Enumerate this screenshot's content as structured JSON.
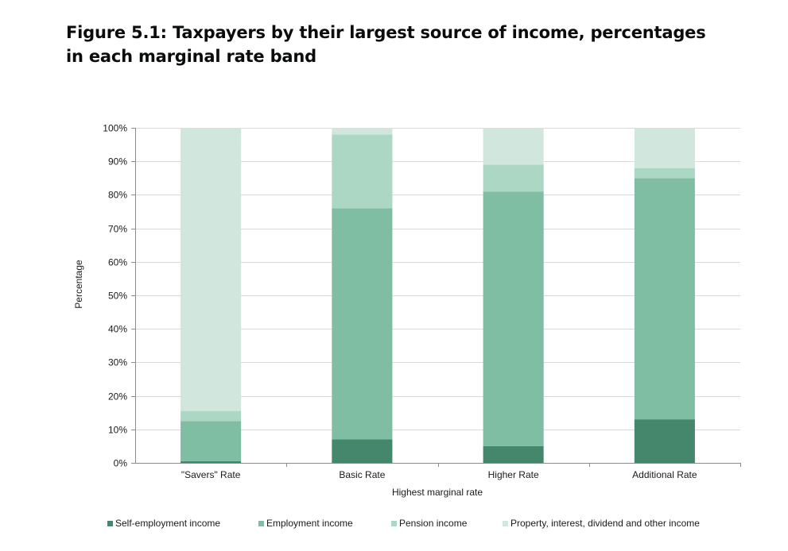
{
  "figure_title": "Figure 5.1: Taxpayers by their largest source of income, percentages in each marginal rate band",
  "chart_data": {
    "type": "bar",
    "stacked": true,
    "title": "",
    "xlabel": "Highest marginal rate",
    "ylabel": "Percentage",
    "ylim": [
      0,
      100
    ],
    "yticks": [
      "0%",
      "10%",
      "20%",
      "30%",
      "40%",
      "50%",
      "60%",
      "70%",
      "80%",
      "90%",
      "100%"
    ],
    "categories": [
      "\"Savers\" Rate",
      "Basic Rate",
      "Higher Rate",
      "Additional Rate"
    ],
    "series": [
      {
        "name": "Self-employment income",
        "color": "#44876c",
        "values": [
          0.5,
          7,
          5,
          13
        ]
      },
      {
        "name": "Employment income",
        "color": "#7fbea3",
        "values": [
          12,
          69,
          76,
          72
        ]
      },
      {
        "name": "Pension income",
        "color": "#acd7c4",
        "values": [
          3,
          22,
          8,
          3
        ]
      },
      {
        "name": "Property, interest, dividend and other income",
        "color": "#d1e7dd",
        "values": [
          84.5,
          2,
          11,
          12
        ]
      }
    ],
    "grid": true,
    "legend_position": "bottom"
  }
}
